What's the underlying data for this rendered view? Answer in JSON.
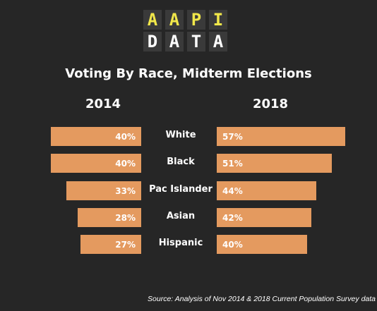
{
  "logo": {
    "top_letters": [
      "A",
      "A",
      "P",
      "I"
    ],
    "bottom_letters": [
      "D",
      "A",
      "T",
      "A"
    ],
    "top_color": "#f2e84a",
    "bottom_color": "#ffffff"
  },
  "source": "Source: Analysis of Nov 2014 & 2018 Current Population Survey data",
  "chart_data": {
    "type": "bar",
    "title": "Voting By Race, Midterm Elections",
    "xlabel": "",
    "ylabel": "",
    "categories": [
      "White",
      "Black",
      "Pac Islander",
      "Asian",
      "Hispanic"
    ],
    "series": [
      {
        "name": "2014",
        "values": [
          40,
          40,
          33,
          28,
          27
        ],
        "labels": [
          "40%",
          "40%",
          "33%",
          "28%",
          "27%"
        ]
      },
      {
        "name": "2018",
        "values": [
          57,
          51,
          44,
          42,
          40
        ],
        "labels": [
          "57%",
          "51%",
          "44%",
          "42%",
          "40%"
        ]
      }
    ],
    "bar_color": "#e49a5f",
    "background": "#262626",
    "grid": false
  }
}
